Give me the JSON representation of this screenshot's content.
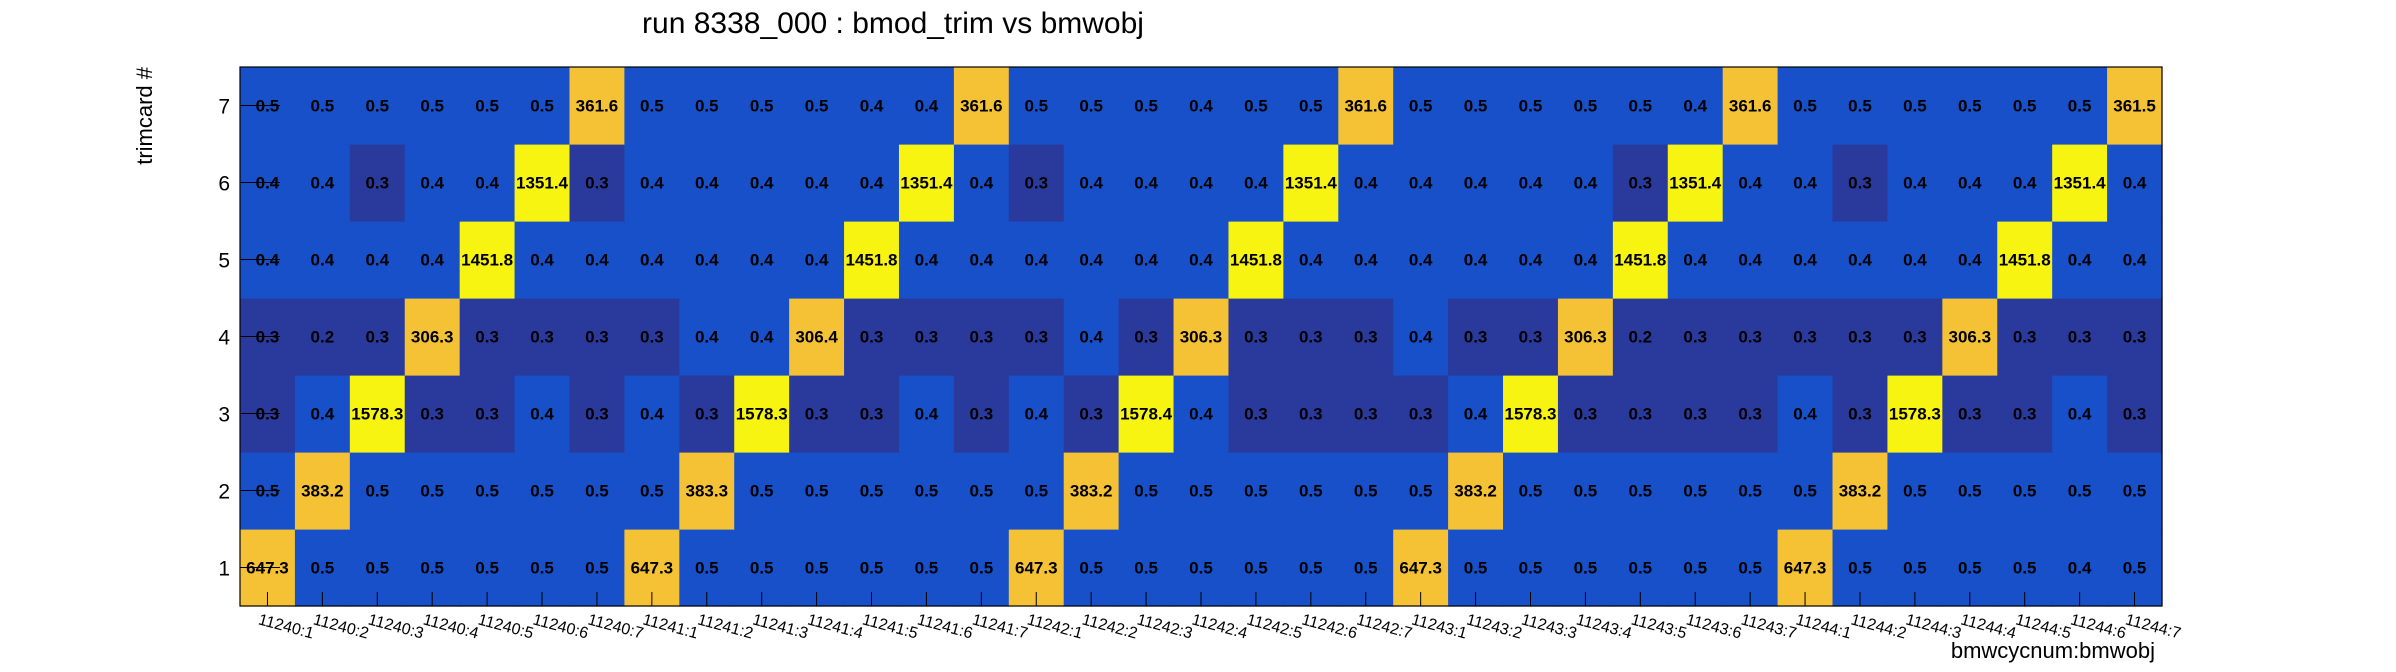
{
  "chart_data": {
    "type": "heatmap",
    "title": "run 8338_000 : bmod_trim vs bmwobj",
    "xlabel": "bmwcycnum:bmwobj",
    "ylabel": "trimcard #",
    "x_categories": [
      "11240:1",
      "11240:2",
      "11240:3",
      "11240:4",
      "11240:5",
      "11240:6",
      "11240:7",
      "11241:1",
      "11241:2",
      "11241:3",
      "11241:4",
      "11241:5",
      "11241:6",
      "11241:7",
      "11242:1",
      "11242:2",
      "11242:3",
      "11242:4",
      "11242:5",
      "11242:6",
      "11242:7",
      "11243:1",
      "11243:2",
      "11243:3",
      "11243:4",
      "11243:5",
      "11243:6",
      "11243:7",
      "11244:1",
      "11244:2",
      "11244:3",
      "11244:4",
      "11244:5",
      "11244:6",
      "11244:7"
    ],
    "y_categories": [
      "1",
      "2",
      "3",
      "4",
      "5",
      "6",
      "7"
    ],
    "values": [
      [
        "647.3",
        "0.5",
        "0.5",
        "0.5",
        "0.5",
        "0.5",
        "0.5",
        "647.3",
        "0.5",
        "0.5",
        "0.5",
        "0.5",
        "0.5",
        "0.5",
        "647.3",
        "0.5",
        "0.5",
        "0.5",
        "0.5",
        "0.5",
        "0.5",
        "647.3",
        "0.5",
        "0.5",
        "0.5",
        "0.5",
        "0.5",
        "0.5",
        "647.3",
        "0.5",
        "0.5",
        "0.5",
        "0.5",
        "0.4",
        "0.5"
      ],
      [
        "0.5",
        "383.2",
        "0.5",
        "0.5",
        "0.5",
        "0.5",
        "0.5",
        "0.5",
        "383.3",
        "0.5",
        "0.5",
        "0.5",
        "0.5",
        "0.5",
        "0.5",
        "383.2",
        "0.5",
        "0.5",
        "0.5",
        "0.5",
        "0.5",
        "0.5",
        "383.2",
        "0.5",
        "0.5",
        "0.5",
        "0.5",
        "0.5",
        "0.5",
        "383.2",
        "0.5",
        "0.5",
        "0.5",
        "0.5",
        "0.5"
      ],
      [
        "0.3",
        "0.4",
        "1578.3",
        "0.3",
        "0.3",
        "0.4",
        "0.3",
        "0.4",
        "0.3",
        "1578.3",
        "0.3",
        "0.3",
        "0.4",
        "0.3",
        "0.4",
        "0.3",
        "1578.4",
        "0.4",
        "0.3",
        "0.3",
        "0.3",
        "0.3",
        "0.4",
        "1578.3",
        "0.3",
        "0.3",
        "0.3",
        "0.3",
        "0.4",
        "0.3",
        "1578.3",
        "0.3",
        "0.3",
        "0.4",
        "0.3"
      ],
      [
        "0.3",
        "0.2",
        "0.3",
        "306.3",
        "0.3",
        "0.3",
        "0.3",
        "0.3",
        "0.4",
        "0.4",
        "306.4",
        "0.3",
        "0.3",
        "0.3",
        "0.3",
        "0.4",
        "0.3",
        "306.3",
        "0.3",
        "0.3",
        "0.3",
        "0.4",
        "0.3",
        "0.3",
        "306.3",
        "0.2",
        "0.3",
        "0.3",
        "0.3",
        "0.3",
        "0.3",
        "306.3",
        "0.3",
        "0.3",
        "0.3"
      ],
      [
        "0.4",
        "0.4",
        "0.4",
        "0.4",
        "1451.8",
        "0.4",
        "0.4",
        "0.4",
        "0.4",
        "0.4",
        "0.4",
        "1451.8",
        "0.4",
        "0.4",
        "0.4",
        "0.4",
        "0.4",
        "0.4",
        "1451.8",
        "0.4",
        "0.4",
        "0.4",
        "0.4",
        "0.4",
        "0.4",
        "1451.8",
        "0.4",
        "0.4",
        "0.4",
        "0.4",
        "0.4",
        "0.4",
        "1451.8",
        "0.4",
        "0.4"
      ],
      [
        "0.4",
        "0.4",
        "0.3",
        "0.4",
        "0.4",
        "1351.4",
        "0.3",
        "0.4",
        "0.4",
        "0.4",
        "0.4",
        "0.4",
        "1351.4",
        "0.4",
        "0.3",
        "0.4",
        "0.4",
        "0.4",
        "0.4",
        "1351.4",
        "0.4",
        "0.4",
        "0.4",
        "0.4",
        "0.4",
        "0.3",
        "1351.4",
        "0.4",
        "0.4",
        "0.3",
        "0.4",
        "0.4",
        "0.4",
        "1351.4",
        "0.4"
      ],
      [
        "0.5",
        "0.5",
        "0.5",
        "0.5",
        "0.5",
        "0.5",
        "361.6",
        "0.5",
        "0.5",
        "0.5",
        "0.5",
        "0.4",
        "0.4",
        "361.6",
        "0.5",
        "0.5",
        "0.5",
        "0.4",
        "0.5",
        "0.5",
        "361.6",
        "0.5",
        "0.5",
        "0.5",
        "0.5",
        "0.5",
        "0.4",
        "361.6",
        "0.5",
        "0.5",
        "0.5",
        "0.5",
        "0.5",
        "0.5",
        "361.5"
      ]
    ],
    "colors": {
      "dark_blue": "#2a3a9c",
      "mid_blue": "#1750c8",
      "gold": "#f5c236",
      "yellow": "#f8f412"
    },
    "grid": false
  }
}
